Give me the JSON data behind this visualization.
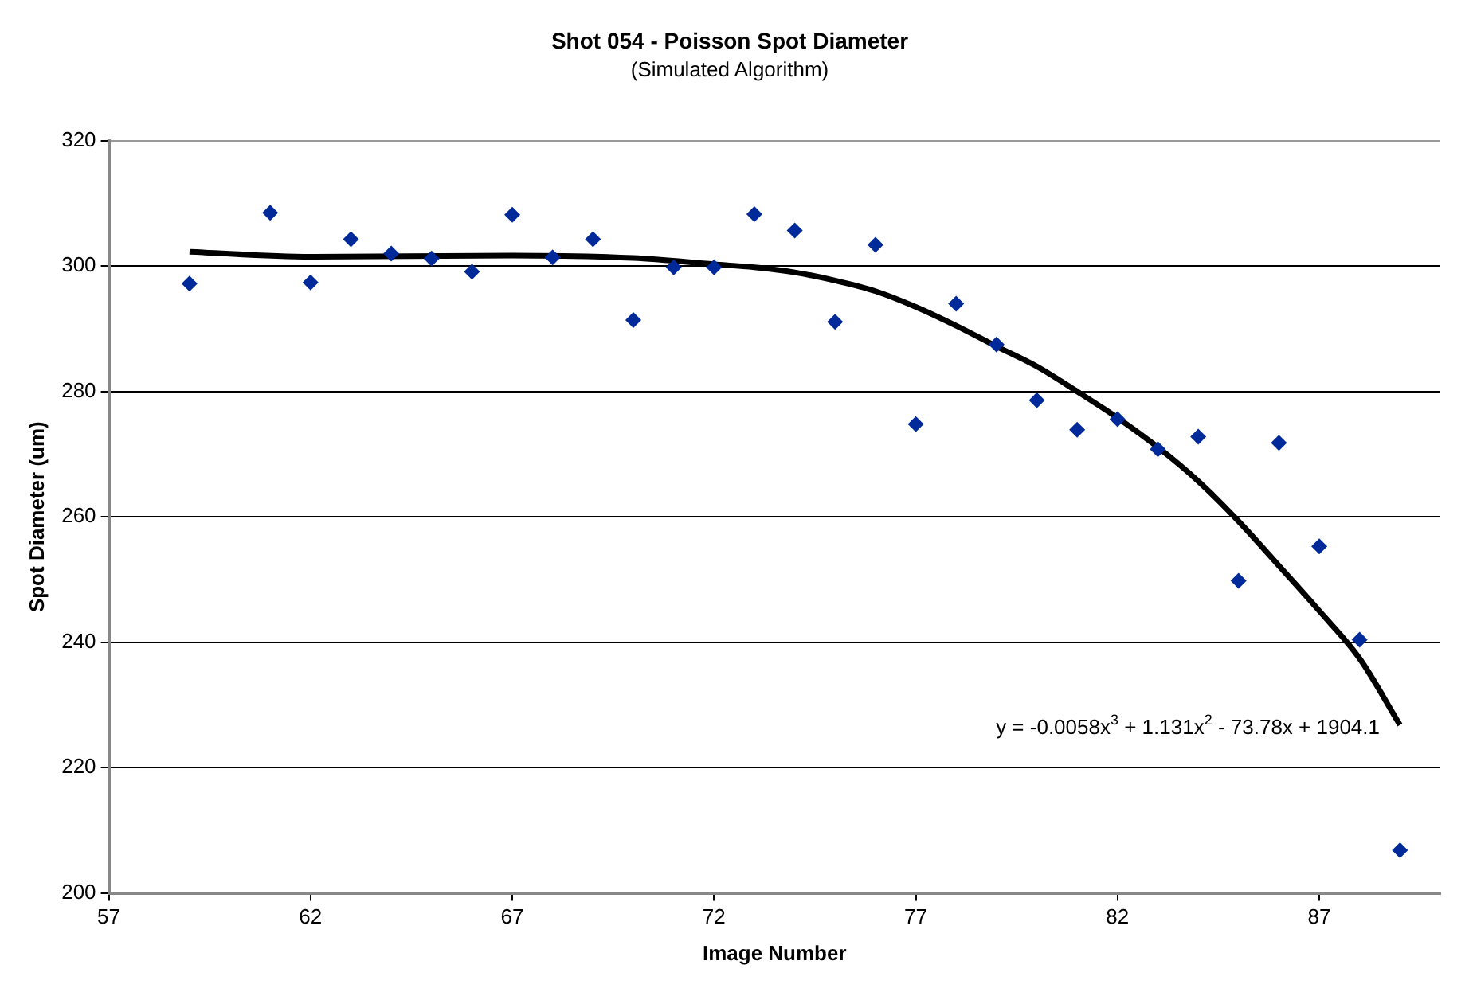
{
  "chart_data": {
    "type": "scatter",
    "title": "Shot 054 - Poisson Spot Diameter",
    "subtitle": "(Simulated Algorithm)",
    "xlabel": "Image Number",
    "ylabel": "Spot Diameter (um)",
    "xlim": [
      57,
      90
    ],
    "xticks": [
      57,
      62,
      67,
      72,
      77,
      82,
      87
    ],
    "ylim": [
      200,
      320
    ],
    "yticks": [
      200,
      220,
      240,
      260,
      280,
      300,
      320
    ],
    "grid": "y",
    "legend": false,
    "marker": "diamond",
    "series": [
      {
        "color": "#002a9a",
        "x": [
          59,
          61,
          62,
          63,
          64,
          65,
          66,
          67,
          68,
          69,
          70,
          71,
          72,
          73,
          74,
          75,
          76,
          77,
          78,
          79,
          80,
          81,
          82,
          83,
          84,
          85,
          86,
          87,
          88,
          89
        ],
        "values": [
          297.2,
          308.5,
          297.4,
          304.3,
          302.0,
          301.2,
          299.1,
          308.2,
          301.4,
          304.3,
          291.4,
          299.8,
          299.8,
          308.3,
          305.7,
          291.1,
          303.4,
          274.8,
          294.0,
          287.5,
          278.6,
          273.9,
          275.6,
          270.8,
          272.8,
          249.8,
          271.8,
          255.3,
          240.4,
          206.8
        ]
      },
      {
        "type": "line",
        "color": "#000000",
        "marker": "none",
        "x": [
          59,
          62,
          67,
          70,
          72,
          73,
          74,
          75,
          76,
          77,
          78,
          79,
          80,
          81,
          82,
          83,
          84,
          85,
          86,
          87,
          88,
          89
        ],
        "values": [
          302.3,
          301.5,
          301.7,
          301.3,
          300.3,
          299.8,
          299.0,
          297.7,
          296.0,
          293.5,
          290.5,
          287.2,
          284.0,
          280.0,
          275.8,
          271.1,
          265.7,
          259.3,
          252.2,
          245.0,
          237.4,
          226.8
        ]
      }
    ],
    "annotations": [
      "y = -0.0058x$^{3}$ + 1.131x$^{2}$ - 73.78x + 1904.1"
    ]
  }
}
